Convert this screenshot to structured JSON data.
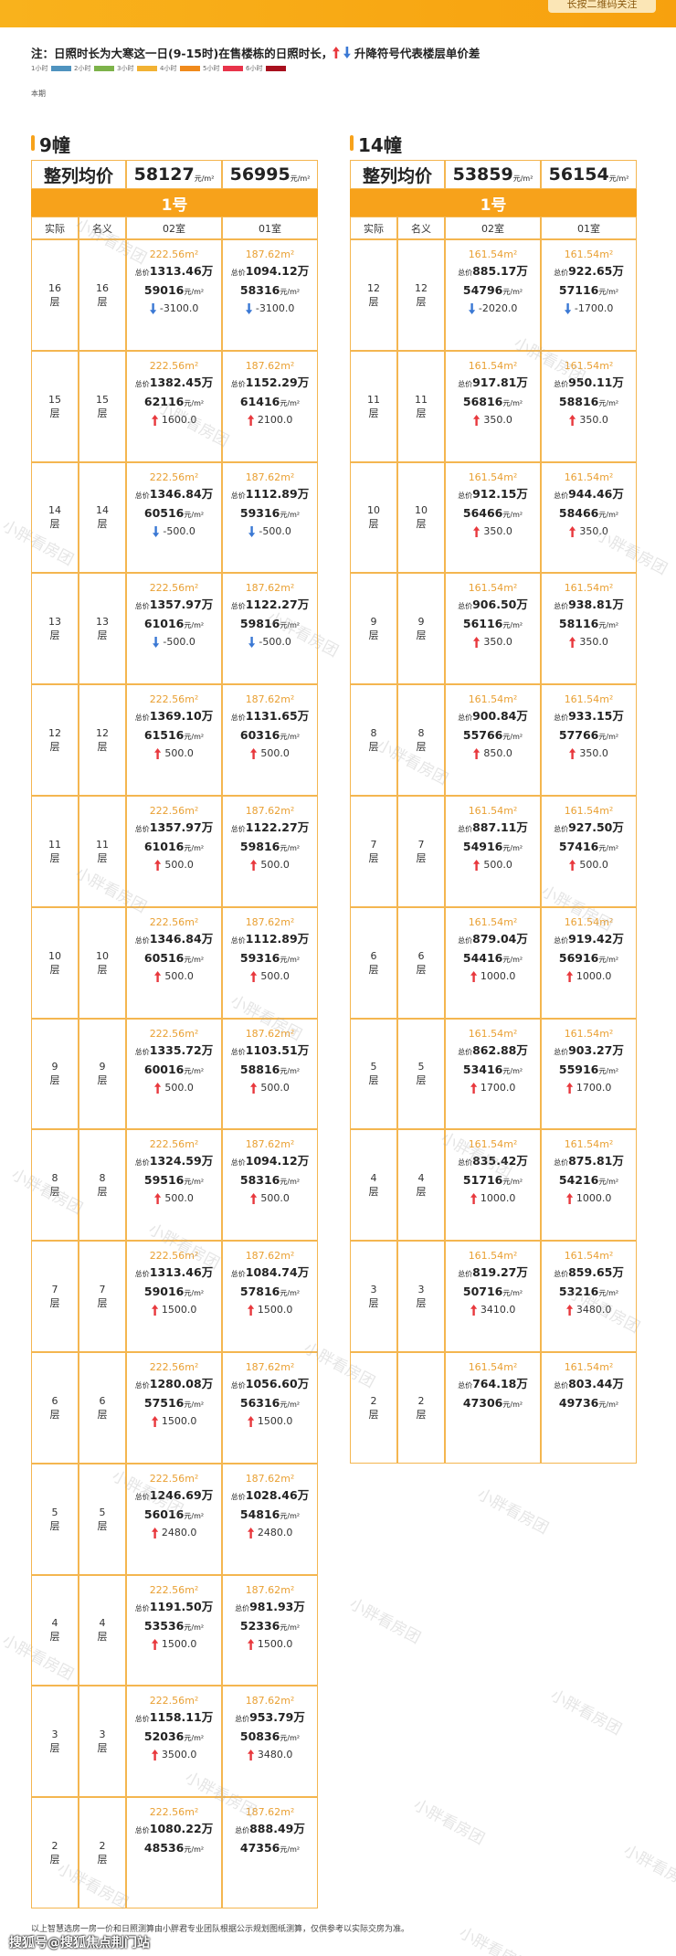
{
  "banner": {
    "button": "长按二维码关注"
  },
  "note": {
    "text": "注：日照时长为大寒这一日(9-15时)在售楼栋的日照时长，",
    "arrows_text": "升降符号代表楼层单价差"
  },
  "legend": [
    {
      "label": "1小时",
      "color": "#4f93bf"
    },
    {
      "label": "2小时",
      "color": "#7db34a"
    },
    {
      "label": "3小时",
      "color": "#f2b233"
    },
    {
      "label": "4小时",
      "color": "#f08a1c"
    },
    {
      "label": "5小时",
      "color": "#e8334a"
    },
    {
      "label": "6小时",
      "color": "#a8101e"
    }
  ],
  "period": "本期",
  "common": {
    "avg_label": "整列均价",
    "price_unit": "元/m²",
    "area_unit": "m²",
    "total_prefix": "总价",
    "total_suffix": "万",
    "floor_suffix": "层",
    "unit_label": "1号",
    "columns": [
      "实际",
      "名义",
      "02室",
      "01室"
    ]
  },
  "buildings": [
    {
      "name": "9幢",
      "avg": [
        "58127",
        "56995"
      ],
      "rows": [
        {
          "real": "16",
          "nominal": "16",
          "units": [
            {
              "area": "222.56",
              "total": "1313.46",
              "price": "59016",
              "diff": "-3100.0"
            },
            {
              "area": "187.62",
              "total": "1094.12",
              "price": "58316",
              "diff": "-3100.0"
            }
          ]
        },
        {
          "real": "15",
          "nominal": "15",
          "units": [
            {
              "area": "222.56",
              "total": "1382.45",
              "price": "62116",
              "diff": "1600.0"
            },
            {
              "area": "187.62",
              "total": "1152.29",
              "price": "61416",
              "diff": "2100.0"
            }
          ]
        },
        {
          "real": "14",
          "nominal": "14",
          "units": [
            {
              "area": "222.56",
              "total": "1346.84",
              "price": "60516",
              "diff": "-500.0"
            },
            {
              "area": "187.62",
              "total": "1112.89",
              "price": "59316",
              "diff": "-500.0"
            }
          ]
        },
        {
          "real": "13",
          "nominal": "13",
          "units": [
            {
              "area": "222.56",
              "total": "1357.97",
              "price": "61016",
              "diff": "-500.0"
            },
            {
              "area": "187.62",
              "total": "1122.27",
              "price": "59816",
              "diff": "-500.0"
            }
          ]
        },
        {
          "real": "12",
          "nominal": "12",
          "units": [
            {
              "area": "222.56",
              "total": "1369.10",
              "price": "61516",
              "diff": "500.0"
            },
            {
              "area": "187.62",
              "total": "1131.65",
              "price": "60316",
              "diff": "500.0"
            }
          ]
        },
        {
          "real": "11",
          "nominal": "11",
          "units": [
            {
              "area": "222.56",
              "total": "1357.97",
              "price": "61016",
              "diff": "500.0"
            },
            {
              "area": "187.62",
              "total": "1122.27",
              "price": "59816",
              "diff": "500.0"
            }
          ]
        },
        {
          "real": "10",
          "nominal": "10",
          "units": [
            {
              "area": "222.56",
              "total": "1346.84",
              "price": "60516",
              "diff": "500.0"
            },
            {
              "area": "187.62",
              "total": "1112.89",
              "price": "59316",
              "diff": "500.0"
            }
          ]
        },
        {
          "real": "9",
          "nominal": "9",
          "units": [
            {
              "area": "222.56",
              "total": "1335.72",
              "price": "60016",
              "diff": "500.0"
            },
            {
              "area": "187.62",
              "total": "1103.51",
              "price": "58816",
              "diff": "500.0"
            }
          ]
        },
        {
          "real": "8",
          "nominal": "8",
          "units": [
            {
              "area": "222.56",
              "total": "1324.59",
              "price": "59516",
              "diff": "500.0"
            },
            {
              "area": "187.62",
              "total": "1094.12",
              "price": "58316",
              "diff": "500.0"
            }
          ]
        },
        {
          "real": "7",
          "nominal": "7",
          "units": [
            {
              "area": "222.56",
              "total": "1313.46",
              "price": "59016",
              "diff": "1500.0"
            },
            {
              "area": "187.62",
              "total": "1084.74",
              "price": "57816",
              "diff": "1500.0"
            }
          ]
        },
        {
          "real": "6",
          "nominal": "6",
          "units": [
            {
              "area": "222.56",
              "total": "1280.08",
              "price": "57516",
              "diff": "1500.0"
            },
            {
              "area": "187.62",
              "total": "1056.60",
              "price": "56316",
              "diff": "1500.0"
            }
          ]
        },
        {
          "real": "5",
          "nominal": "5",
          "units": [
            {
              "area": "222.56",
              "total": "1246.69",
              "price": "56016",
              "diff": "2480.0"
            },
            {
              "area": "187.62",
              "total": "1028.46",
              "price": "54816",
              "diff": "2480.0"
            }
          ]
        },
        {
          "real": "4",
          "nominal": "4",
          "units": [
            {
              "area": "222.56",
              "total": "1191.50",
              "price": "53536",
              "diff": "1500.0"
            },
            {
              "area": "187.62",
              "total": "981.93",
              "price": "52336",
              "diff": "1500.0"
            }
          ]
        },
        {
          "real": "3",
          "nominal": "3",
          "units": [
            {
              "area": "222.56",
              "total": "1158.11",
              "price": "52036",
              "diff": "3500.0"
            },
            {
              "area": "187.62",
              "total": "953.79",
              "price": "50836",
              "diff": "3480.0"
            }
          ]
        },
        {
          "real": "2",
          "nominal": "2",
          "units": [
            {
              "area": "222.56",
              "total": "1080.22",
              "price": "48536"
            },
            {
              "area": "187.62",
              "total": "888.49",
              "price": "47356"
            }
          ]
        }
      ]
    },
    {
      "name": "14幢",
      "avg": [
        "53859",
        "56154"
      ],
      "rows": [
        {
          "real": "12",
          "nominal": "12",
          "units": [
            {
              "area": "161.54",
              "total": "885.17",
              "price": "54796",
              "diff": "-2020.0"
            },
            {
              "area": "161.54",
              "total": "922.65",
              "price": "57116",
              "diff": "-1700.0"
            }
          ]
        },
        {
          "real": "11",
          "nominal": "11",
          "units": [
            {
              "area": "161.54",
              "total": "917.81",
              "price": "56816",
              "diff": "350.0"
            },
            {
              "area": "161.54",
              "total": "950.11",
              "price": "58816",
              "diff": "350.0"
            }
          ]
        },
        {
          "real": "10",
          "nominal": "10",
          "units": [
            {
              "area": "161.54",
              "total": "912.15",
              "price": "56466",
              "diff": "350.0"
            },
            {
              "area": "161.54",
              "total": "944.46",
              "price": "58466",
              "diff": "350.0"
            }
          ]
        },
        {
          "real": "9",
          "nominal": "9",
          "units": [
            {
              "area": "161.54",
              "total": "906.50",
              "price": "56116",
              "diff": "350.0"
            },
            {
              "area": "161.54",
              "total": "938.81",
              "price": "58116",
              "diff": "350.0"
            }
          ]
        },
        {
          "real": "8",
          "nominal": "8",
          "units": [
            {
              "area": "161.54",
              "total": "900.84",
              "price": "55766",
              "diff": "850.0"
            },
            {
              "area": "161.54",
              "total": "933.15",
              "price": "57766",
              "diff": "350.0"
            }
          ]
        },
        {
          "real": "7",
          "nominal": "7",
          "units": [
            {
              "area": "161.54",
              "total": "887.11",
              "price": "54916",
              "diff": "500.0"
            },
            {
              "area": "161.54",
              "total": "927.50",
              "price": "57416",
              "diff": "500.0"
            }
          ]
        },
        {
          "real": "6",
          "nominal": "6",
          "units": [
            {
              "area": "161.54",
              "total": "879.04",
              "price": "54416",
              "diff": "1000.0"
            },
            {
              "area": "161.54",
              "total": "919.42",
              "price": "56916",
              "diff": "1000.0"
            }
          ]
        },
        {
          "real": "5",
          "nominal": "5",
          "units": [
            {
              "area": "161.54",
              "total": "862.88",
              "price": "53416",
              "diff": "1700.0"
            },
            {
              "area": "161.54",
              "total": "903.27",
              "price": "55916",
              "diff": "1700.0"
            }
          ]
        },
        {
          "real": "4",
          "nominal": "4",
          "units": [
            {
              "area": "161.54",
              "total": "835.42",
              "price": "51716",
              "diff": "1000.0"
            },
            {
              "area": "161.54",
              "total": "875.81",
              "price": "54216",
              "diff": "1000.0"
            }
          ]
        },
        {
          "real": "3",
          "nominal": "3",
          "units": [
            {
              "area": "161.54",
              "total": "819.27",
              "price": "50716",
              "diff": "3410.0"
            },
            {
              "area": "161.54",
              "total": "859.65",
              "price": "53216",
              "diff": "3480.0"
            }
          ]
        },
        {
          "real": "2",
          "nominal": "2",
          "units": [
            {
              "area": "161.54",
              "total": "764.18",
              "price": "47306"
            },
            {
              "area": "161.54",
              "total": "803.44",
              "price": "49736"
            }
          ]
        }
      ]
    }
  ],
  "footer": {
    "disclaimer": "以上智慧选房一房一价和日照测算由小胖君专业团队根据公示规划图纸测算，仅供参考以实际交房为准。",
    "source": "搜狐号@搜狐焦点荆门站"
  },
  "watermark": "小胖看房团"
}
